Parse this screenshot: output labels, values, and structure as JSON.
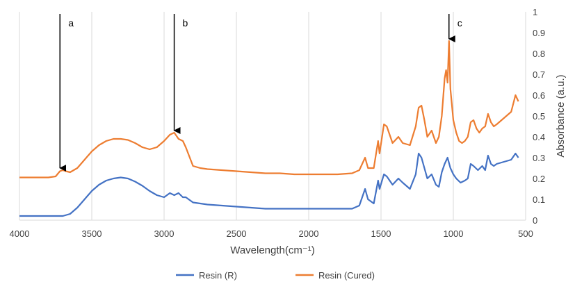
{
  "chart_data": {
    "type": "line",
    "title": "",
    "xlabel": "Wavelength(cm⁻¹)",
    "ylabel": "Absorbance (a.u.)",
    "xlim": [
      4000,
      500
    ],
    "ylim": [
      0,
      1
    ],
    "x_reversed": true,
    "y_axis_side": "right",
    "x_ticks": [
      "4000",
      "3500",
      "3000",
      "2500",
      "2000",
      "1500",
      "1000",
      "500"
    ],
    "y_ticks": [
      "0",
      "0.1",
      "0.2",
      "0.3",
      "0.4",
      "0.5",
      "0.6",
      "0.7",
      "0.8",
      "0.9",
      "1"
    ],
    "grid": "vertical",
    "legend_position": "bottom",
    "series": [
      {
        "name": "Resin (R)",
        "color": "#4472C4",
        "points": [
          [
            4000,
            0.02
          ],
          [
            3900,
            0.02
          ],
          [
            3800,
            0.02
          ],
          [
            3700,
            0.02
          ],
          [
            3650,
            0.03
          ],
          [
            3600,
            0.06
          ],
          [
            3550,
            0.1
          ],
          [
            3500,
            0.14
          ],
          [
            3450,
            0.17
          ],
          [
            3400,
            0.19
          ],
          [
            3350,
            0.2
          ],
          [
            3300,
            0.205
          ],
          [
            3250,
            0.2
          ],
          [
            3200,
            0.185
          ],
          [
            3150,
            0.165
          ],
          [
            3100,
            0.14
          ],
          [
            3050,
            0.12
          ],
          [
            3000,
            0.11
          ],
          [
            2960,
            0.13
          ],
          [
            2930,
            0.12
          ],
          [
            2900,
            0.13
          ],
          [
            2870,
            0.11
          ],
          [
            2850,
            0.11
          ],
          [
            2800,
            0.085
          ],
          [
            2750,
            0.08
          ],
          [
            2700,
            0.075
          ],
          [
            2600,
            0.07
          ],
          [
            2500,
            0.065
          ],
          [
            2400,
            0.06
          ],
          [
            2300,
            0.055
          ],
          [
            2200,
            0.055
          ],
          [
            2100,
            0.055
          ],
          [
            2000,
            0.055
          ],
          [
            1900,
            0.055
          ],
          [
            1800,
            0.055
          ],
          [
            1700,
            0.055
          ],
          [
            1650,
            0.07
          ],
          [
            1610,
            0.15
          ],
          [
            1590,
            0.1
          ],
          [
            1550,
            0.08
          ],
          [
            1520,
            0.19
          ],
          [
            1510,
            0.15
          ],
          [
            1480,
            0.22
          ],
          [
            1460,
            0.21
          ],
          [
            1420,
            0.17
          ],
          [
            1380,
            0.2
          ],
          [
            1350,
            0.18
          ],
          [
            1300,
            0.15
          ],
          [
            1260,
            0.22
          ],
          [
            1240,
            0.32
          ],
          [
            1220,
            0.3
          ],
          [
            1200,
            0.25
          ],
          [
            1180,
            0.2
          ],
          [
            1150,
            0.22
          ],
          [
            1120,
            0.17
          ],
          [
            1100,
            0.16
          ],
          [
            1080,
            0.23
          ],
          [
            1060,
            0.27
          ],
          [
            1040,
            0.3
          ],
          [
            1020,
            0.25
          ],
          [
            1000,
            0.22
          ],
          [
            980,
            0.2
          ],
          [
            950,
            0.18
          ],
          [
            920,
            0.19
          ],
          [
            900,
            0.2
          ],
          [
            880,
            0.27
          ],
          [
            860,
            0.26
          ],
          [
            830,
            0.24
          ],
          [
            800,
            0.26
          ],
          [
            780,
            0.24
          ],
          [
            760,
            0.31
          ],
          [
            740,
            0.27
          ],
          [
            720,
            0.26
          ],
          [
            700,
            0.27
          ],
          [
            650,
            0.28
          ],
          [
            600,
            0.29
          ],
          [
            570,
            0.32
          ],
          [
            550,
            0.3
          ]
        ]
      },
      {
        "name": "Resin (Cured)",
        "color": "#ED7D31",
        "points": [
          [
            4000,
            0.205
          ],
          [
            3900,
            0.205
          ],
          [
            3800,
            0.205
          ],
          [
            3750,
            0.21
          ],
          [
            3720,
            0.235
          ],
          [
            3700,
            0.24
          ],
          [
            3680,
            0.235
          ],
          [
            3650,
            0.23
          ],
          [
            3600,
            0.25
          ],
          [
            3550,
            0.29
          ],
          [
            3500,
            0.33
          ],
          [
            3450,
            0.36
          ],
          [
            3400,
            0.38
          ],
          [
            3350,
            0.39
          ],
          [
            3300,
            0.39
          ],
          [
            3250,
            0.385
          ],
          [
            3200,
            0.37
          ],
          [
            3150,
            0.35
          ],
          [
            3100,
            0.34
          ],
          [
            3050,
            0.35
          ],
          [
            3000,
            0.38
          ],
          [
            2960,
            0.41
          ],
          [
            2930,
            0.42
          ],
          [
            2900,
            0.39
          ],
          [
            2870,
            0.38
          ],
          [
            2850,
            0.35
          ],
          [
            2800,
            0.26
          ],
          [
            2750,
            0.25
          ],
          [
            2700,
            0.245
          ],
          [
            2600,
            0.24
          ],
          [
            2500,
            0.235
          ],
          [
            2400,
            0.23
          ],
          [
            2300,
            0.225
          ],
          [
            2200,
            0.225
          ],
          [
            2100,
            0.22
          ],
          [
            2000,
            0.22
          ],
          [
            1900,
            0.22
          ],
          [
            1800,
            0.22
          ],
          [
            1700,
            0.225
          ],
          [
            1650,
            0.24
          ],
          [
            1610,
            0.3
          ],
          [
            1590,
            0.25
          ],
          [
            1550,
            0.25
          ],
          [
            1520,
            0.38
          ],
          [
            1510,
            0.32
          ],
          [
            1480,
            0.46
          ],
          [
            1460,
            0.45
          ],
          [
            1420,
            0.37
          ],
          [
            1380,
            0.4
          ],
          [
            1350,
            0.37
          ],
          [
            1300,
            0.36
          ],
          [
            1260,
            0.45
          ],
          [
            1240,
            0.54
          ],
          [
            1220,
            0.55
          ],
          [
            1200,
            0.48
          ],
          [
            1180,
            0.4
          ],
          [
            1150,
            0.43
          ],
          [
            1120,
            0.37
          ],
          [
            1100,
            0.4
          ],
          [
            1080,
            0.5
          ],
          [
            1060,
            0.68
          ],
          [
            1050,
            0.72
          ],
          [
            1040,
            0.66
          ],
          [
            1030,
            0.86
          ],
          [
            1020,
            0.63
          ],
          [
            1000,
            0.48
          ],
          [
            980,
            0.42
          ],
          [
            960,
            0.38
          ],
          [
            940,
            0.37
          ],
          [
            920,
            0.38
          ],
          [
            900,
            0.4
          ],
          [
            880,
            0.47
          ],
          [
            860,
            0.48
          ],
          [
            840,
            0.44
          ],
          [
            820,
            0.42
          ],
          [
            800,
            0.44
          ],
          [
            780,
            0.45
          ],
          [
            760,
            0.51
          ],
          [
            740,
            0.47
          ],
          [
            720,
            0.45
          ],
          [
            700,
            0.46
          ],
          [
            650,
            0.49
          ],
          [
            600,
            0.52
          ],
          [
            570,
            0.6
          ],
          [
            550,
            0.57
          ]
        ]
      }
    ],
    "annotations": [
      {
        "label": "a",
        "x": 3720,
        "y": 0.25
      },
      {
        "label": "b",
        "x": 2930,
        "y": 0.43
      },
      {
        "label": "c",
        "x": 1030,
        "y": 0.87
      }
    ]
  }
}
